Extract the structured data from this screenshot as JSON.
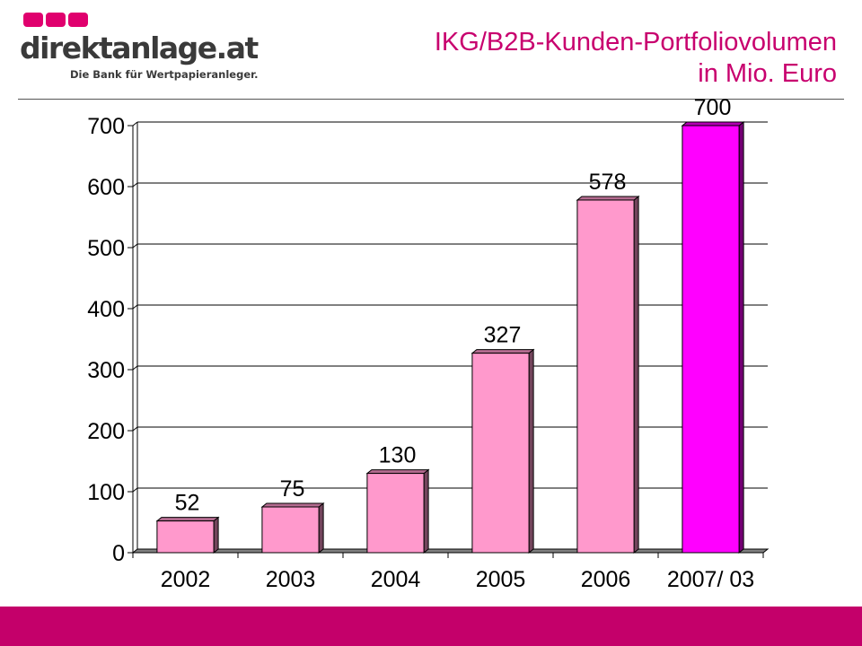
{
  "header": {
    "logo": {
      "name": "direktanlage.at",
      "tagline": "Die Bank für Wertpapieranleger.",
      "square_color": "#e0006e"
    },
    "title_lines": [
      "IKG/B2B-Kunden-Portfoliovolumen",
      "in Mio. Euro"
    ],
    "title_color": "#c8006e"
  },
  "footer": {
    "bar_color": "#c4006a"
  },
  "chart_data": {
    "type": "bar",
    "title": "IKG/B2B-Kunden-Portfoliovolumen in Mio. Euro",
    "categories": [
      "2002",
      "2003",
      "2004",
      "2005",
      "2006",
      "2007/ 03"
    ],
    "values": [
      52,
      75,
      130,
      327,
      578,
      700
    ],
    "data_labels": [
      "52",
      "75",
      "130",
      "327",
      "578",
      "700"
    ],
    "ylim": [
      0,
      700
    ],
    "yticks": [
      0,
      100,
      200,
      300,
      400,
      500,
      600,
      700
    ],
    "grid": true,
    "legend": "none",
    "bar_colors": [
      "#ff99cc",
      "#ff99cc",
      "#ff99cc",
      "#ff99cc",
      "#ff99cc",
      "#ff00ff"
    ]
  }
}
